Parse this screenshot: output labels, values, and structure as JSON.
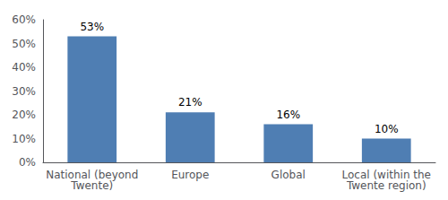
{
  "chart_data": {
    "type": "bar",
    "categories": [
      "National (beyond\nTwente)",
      "Europe",
      "Global",
      "Local (within the\nTwente region)"
    ],
    "values": [
      53,
      21,
      16,
      10
    ],
    "value_labels": [
      "53%",
      "21%",
      "16%",
      "10%"
    ],
    "data_labels": true,
    "color": "#4f7eb3",
    "ylim": [
      0,
      60
    ],
    "yticks": [
      {
        "value": 0,
        "label": "0%"
      },
      {
        "value": 10,
        "label": "10%"
      },
      {
        "value": 20,
        "label": "20%"
      },
      {
        "value": 30,
        "label": "30%"
      },
      {
        "value": 40,
        "label": "40%"
      },
      {
        "value": 50,
        "label": "50%"
      },
      {
        "value": 60,
        "label": "60%"
      }
    ],
    "grid": false
  }
}
